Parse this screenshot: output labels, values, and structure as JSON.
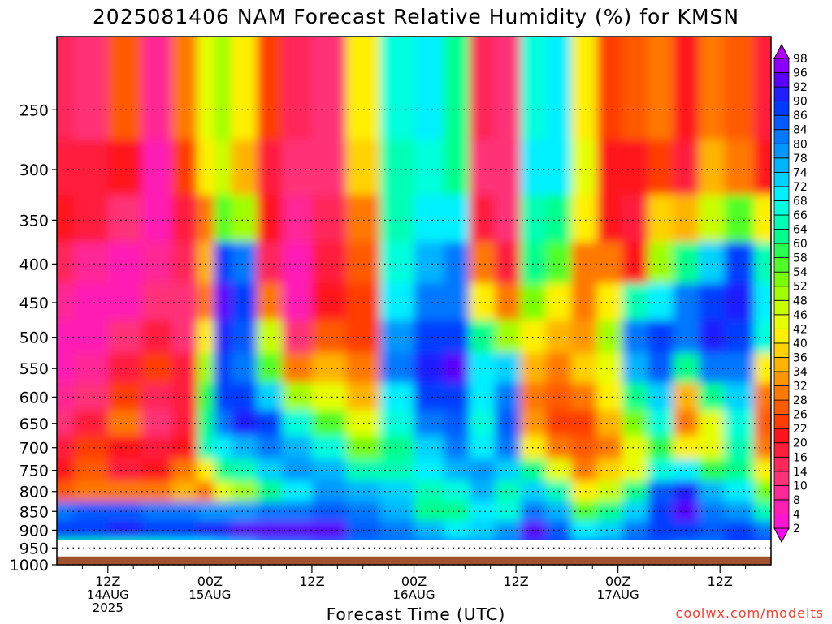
{
  "chart_data": {
    "type": "heatmap",
    "title": "2025081406 NAM Forecast Relative Humidity (%) for KMSN",
    "xlabel": "Forecast Time (UTC)",
    "ylabel": "",
    "y_scale": "log",
    "y_reversed": true,
    "y_ticks": [
      250,
      300,
      350,
      400,
      450,
      500,
      550,
      600,
      650,
      700,
      750,
      800,
      850,
      900,
      950,
      1000
    ],
    "ylim": [
      1000,
      200
    ],
    "x_ticks": [
      {
        "label": "12Z",
        "sub1": "14AUG",
        "sub2": "2025",
        "t": 6
      },
      {
        "label": "00Z",
        "sub1": "15AUG",
        "sub2": "",
        "t": 18
      },
      {
        "label": "12Z",
        "sub1": "",
        "sub2": "",
        "t": 30
      },
      {
        "label": "00Z",
        "sub1": "16AUG",
        "sub2": "",
        "t": 42
      },
      {
        "label": "12Z",
        "sub1": "",
        "sub2": "",
        "t": 54
      },
      {
        "label": "00Z",
        "sub1": "17AUG",
        "sub2": "",
        "t": 66
      },
      {
        "label": "12Z",
        "sub1": "",
        "sub2": "",
        "t": 78
      }
    ],
    "xlim": [
      0,
      84
    ],
    "ground_pressure": 975,
    "colorbar_levels": [
      2,
      4,
      8,
      10,
      14,
      16,
      20,
      22,
      26,
      28,
      32,
      34,
      36,
      40,
      42,
      46,
      48,
      52,
      54,
      58,
      60,
      64,
      66,
      68,
      72,
      74,
      78,
      80,
      84,
      86,
      90,
      92,
      96,
      98
    ],
    "colorbar_colors": [
      "#ff00ff",
      "#ff14d2",
      "#ff1eb4",
      "#ff2896",
      "#ff3278",
      "#ff285a",
      "#ff1e3c",
      "#ff141e",
      "#ff3c00",
      "#ff5a00",
      "#ff7800",
      "#ff9600",
      "#ffb400",
      "#ffd200",
      "#fff000",
      "#e6ff00",
      "#c8ff00",
      "#a0ff00",
      "#78ff00",
      "#50ff28",
      "#28ff50",
      "#00ff8c",
      "#00ffb4",
      "#00ffdc",
      "#00f0ff",
      "#00d2ff",
      "#00b4ff",
      "#0096ff",
      "#0078ff",
      "#005aff",
      "#003cff",
      "#1e1eff",
      "#5a00ff",
      "#8c00ff",
      "#b400ff"
    ],
    "columns": [
      {
        "t": 0,
        "rh": [
          14,
          16,
          20,
          14,
          8,
          6,
          6,
          8,
          12,
          16,
          20,
          26,
          82,
          86,
          60,
          64
        ]
      },
      {
        "t": 4,
        "rh": [
          12,
          18,
          16,
          8,
          4,
          6,
          8,
          10,
          16,
          22,
          26,
          30,
          84,
          88,
          62,
          64
        ]
      },
      {
        "t": 8,
        "rh": [
          26,
          20,
          12,
          6,
          6,
          12,
          16,
          22,
          30,
          20,
          16,
          28,
          84,
          90,
          64,
          66
        ]
      },
      {
        "t": 12,
        "rh": [
          8,
          6,
          6,
          8,
          10,
          18,
          22,
          14,
          12,
          16,
          20,
          30,
          82,
          88,
          64,
          66
        ]
      },
      {
        "t": 15,
        "rh": [
          28,
          24,
          18,
          14,
          10,
          10,
          16,
          18,
          16,
          20,
          30,
          34,
          80,
          88,
          68,
          66
        ]
      },
      {
        "t": 18,
        "rh": [
          44,
          40,
          30,
          34,
          30,
          40,
          50,
          58,
          62,
          64,
          40,
          30,
          78,
          90,
          70,
          68
        ]
      },
      {
        "t": 19,
        "rh": [
          50,
          46,
          56,
          88,
          92,
          90,
          86,
          88,
          82,
          70,
          60,
          44,
          78,
          90,
          72,
          68
        ]
      },
      {
        "t": 22,
        "rh": [
          40,
          34,
          48,
          80,
          86,
          84,
          80,
          88,
          90,
          74,
          64,
          50,
          78,
          92,
          76,
          70
        ]
      },
      {
        "t": 25,
        "rh": [
          22,
          18,
          20,
          14,
          30,
          46,
          56,
          72,
          88,
          82,
          72,
          60,
          80,
          94,
          80,
          72
        ]
      },
      {
        "t": 28,
        "rh": [
          14,
          12,
          8,
          6,
          6,
          10,
          30,
          50,
          66,
          74,
          78,
          70,
          82,
          94,
          82,
          74
        ]
      },
      {
        "t": 32,
        "rh": [
          12,
          10,
          14,
          16,
          20,
          26,
          34,
          44,
          56,
          66,
          74,
          78,
          84,
          92,
          84,
          76
        ]
      },
      {
        "t": 36,
        "rh": [
          40,
          38,
          30,
          26,
          22,
          24,
          30,
          34,
          42,
          52,
          64,
          76,
          82,
          84,
          80,
          76
        ]
      },
      {
        "t": 40,
        "rh": [
          66,
          64,
          64,
          66,
          68,
          78,
          82,
          70,
          66,
          60,
          64,
          72,
          74,
          80,
          82,
          80
        ]
      },
      {
        "t": 44,
        "rh": [
          68,
          66,
          70,
          74,
          80,
          86,
          90,
          88,
          80,
          72,
          70,
          64,
          60,
          74,
          80,
          82
        ]
      },
      {
        "t": 47,
        "rh": [
          62,
          60,
          68,
          80,
          82,
          88,
          92,
          88,
          84,
          80,
          74,
          66,
          62,
          70,
          80,
          84
        ]
      },
      {
        "t": 50,
        "rh": [
          14,
          12,
          16,
          30,
          40,
          60,
          70,
          70,
          66,
          70,
          78,
          76,
          70,
          72,
          78,
          84
        ]
      },
      {
        "t": 53,
        "rh": [
          10,
          10,
          12,
          18,
          30,
          50,
          72,
          80,
          84,
          80,
          72,
          64,
          66,
          78,
          82,
          86
        ]
      },
      {
        "t": 56,
        "rh": [
          66,
          68,
          64,
          60,
          52,
          40,
          34,
          30,
          32,
          40,
          60,
          72,
          80,
          92,
          88,
          86
        ]
      },
      {
        "t": 59,
        "rh": [
          68,
          70,
          62,
          54,
          40,
          34,
          30,
          26,
          22,
          30,
          44,
          64,
          74,
          84,
          86,
          86
        ]
      },
      {
        "t": 62,
        "rh": [
          40,
          44,
          40,
          30,
          28,
          32,
          36,
          30,
          22,
          26,
          30,
          40,
          56,
          70,
          80,
          84
        ]
      },
      {
        "t": 65,
        "rh": [
          22,
          20,
          20,
          28,
          40,
          48,
          44,
          40,
          34,
          30,
          36,
          46,
          60,
          72,
          80,
          84
        ]
      },
      {
        "t": 68,
        "rh": [
          26,
          20,
          16,
          20,
          64,
          80,
          74,
          60,
          52,
          42,
          44,
          60,
          72,
          80,
          84,
          86
        ]
      },
      {
        "t": 71,
        "rh": [
          28,
          24,
          36,
          48,
          70,
          86,
          84,
          72,
          66,
          58,
          66,
          84,
          86,
          88,
          84,
          86
        ]
      },
      {
        "t": 74,
        "rh": [
          20,
          18,
          34,
          60,
          80,
          82,
          60,
          34,
          30,
          40,
          70,
          90,
          92,
          86,
          82,
          84
        ]
      },
      {
        "t": 77,
        "rh": [
          30,
          34,
          46,
          72,
          88,
          90,
          82,
          60,
          42,
          44,
          58,
          76,
          82,
          84,
          82,
          84
        ]
      },
      {
        "t": 80,
        "rh": [
          26,
          30,
          54,
          86,
          90,
          86,
          80,
          72,
          66,
          64,
          62,
          70,
          78,
          86,
          86,
          86
        ]
      },
      {
        "t": 84,
        "rh": [
          18,
          20,
          40,
          64,
          70,
          66,
          40,
          30,
          26,
          30,
          40,
          52,
          64,
          82,
          90,
          88
        ]
      }
    ]
  },
  "credit": "coolwx.com/modelts"
}
